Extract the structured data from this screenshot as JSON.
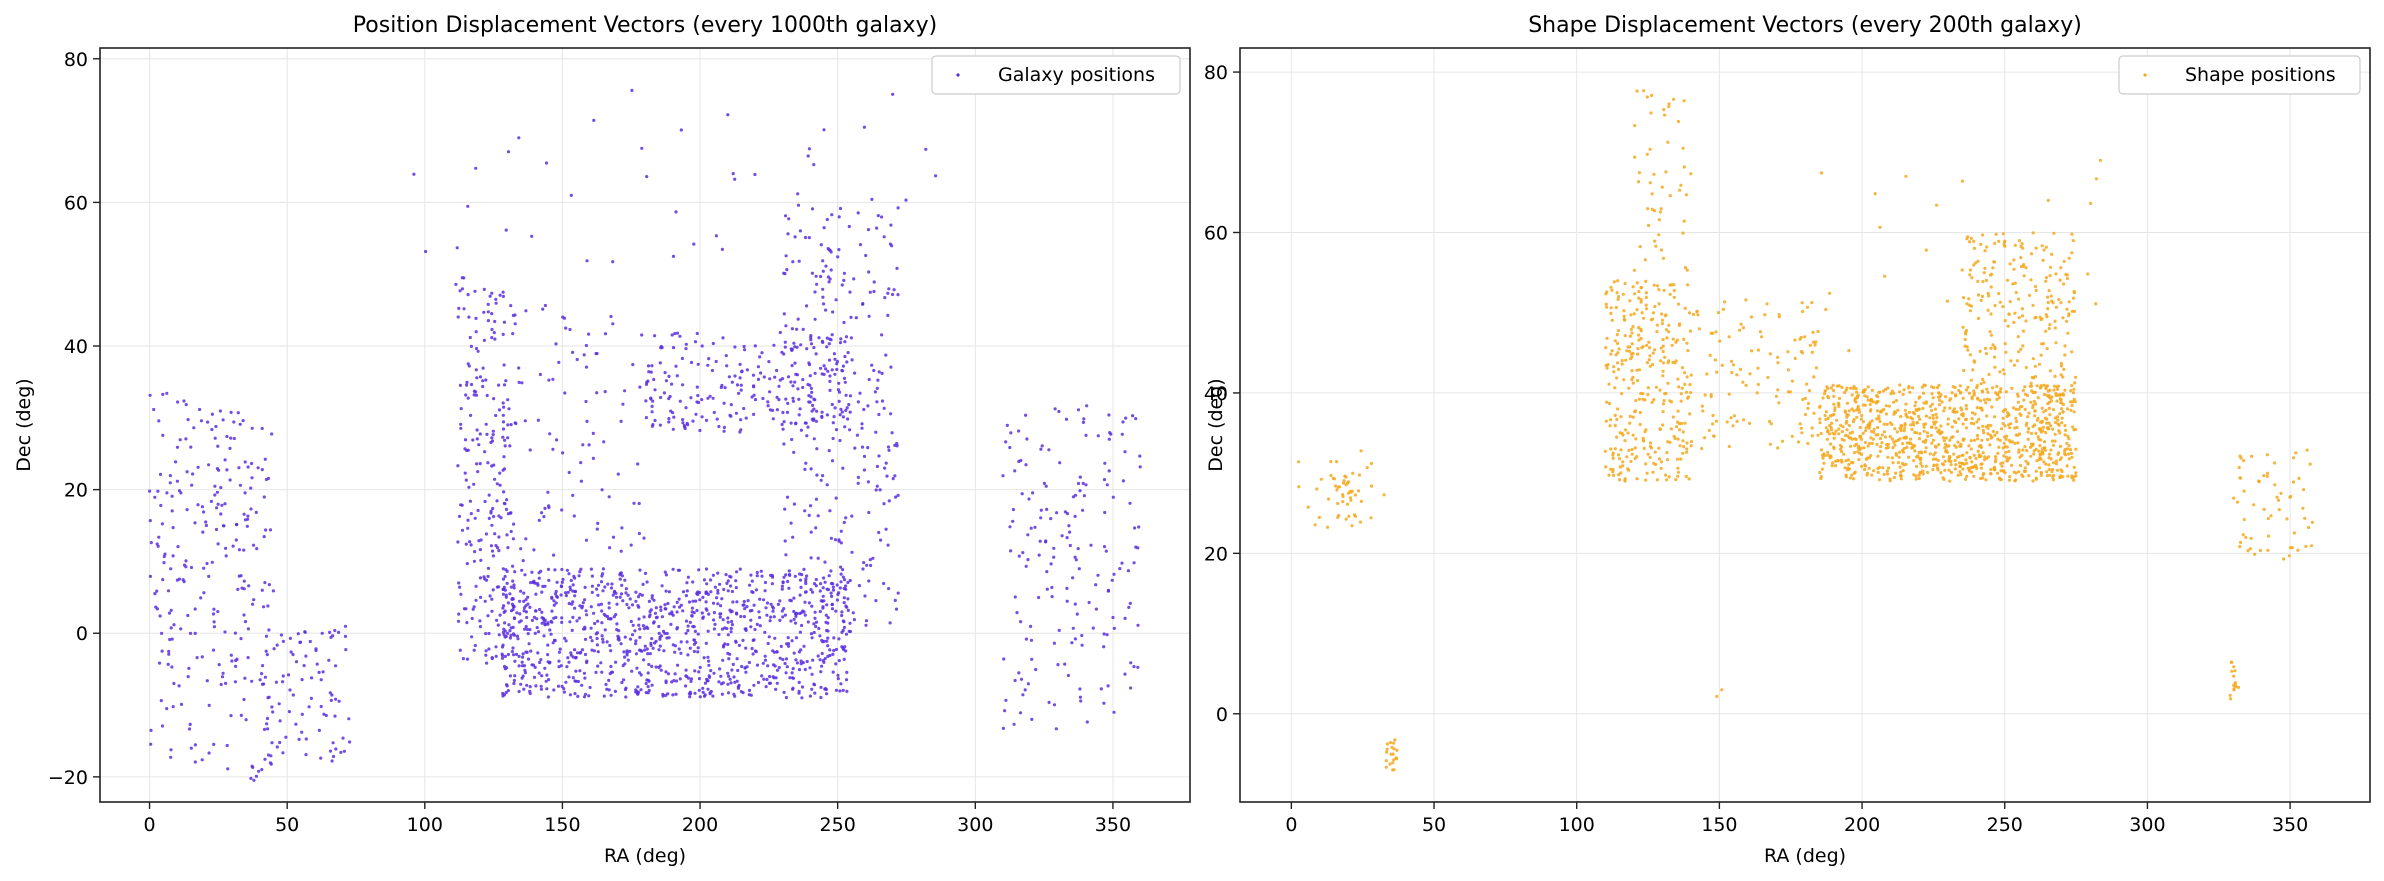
{
  "chart_data": [
    {
      "type": "scatter",
      "title": "Position Displacement Vectors (every 1000th galaxy)",
      "xlabel": "RA (deg)",
      "ylabel": "Dec (deg)",
      "xlim": [
        -18,
        378
      ],
      "ylim": [
        -23.5,
        81.5
      ],
      "xticks": [
        0,
        50,
        100,
        150,
        200,
        250,
        300,
        350
      ],
      "yticks": [
        -20,
        0,
        20,
        40,
        60,
        80
      ],
      "grid": true,
      "legend_position": "top-right",
      "series": [
        {
          "name": "Galaxy positions",
          "color": "#5b2fe0",
          "seed": 7,
          "clusters": [
            {
              "n": 260,
              "ra": [
                0,
                45
              ],
              "dec": [
                -19,
                32
              ],
              "slope": -0.35
            },
            {
              "n": 90,
              "ra": [
                40,
                73
              ],
              "dec": [
                -18,
                1
              ]
            },
            {
              "n": 180,
              "ra": [
                310,
                360
              ],
              "dec": [
                -13,
                32
              ],
              "slope": 0.25
            },
            {
              "n": 260,
              "ra": [
                112,
                135
              ],
              "dec": [
                -5,
                48
              ]
            },
            {
              "n": 1000,
              "ra": [
                128,
                255
              ],
              "dec": [
                -9,
                9
              ]
            },
            {
              "n": 240,
              "ra": [
                180,
                255
              ],
              "dec": [
                28,
                42
              ]
            },
            {
              "n": 300,
              "ra": [
                230,
                272
              ],
              "dec": [
                0,
                60
              ]
            },
            {
              "n": 80,
              "ra": [
                135,
                180
              ],
              "dec": [
                10,
                48
              ]
            },
            {
              "n": 45,
              "ra": [
                95,
                290
              ],
              "dec": [
                48,
                76
              ]
            }
          ]
        }
      ]
    },
    {
      "type": "scatter",
      "title": "Shape Displacement Vectors (every 200th galaxy)",
      "xlabel": "RA (deg)",
      "ylabel": "Dec (deg)",
      "xlim": [
        -18,
        378
      ],
      "ylim": [
        -11,
        83
      ],
      "xticks": [
        0,
        50,
        100,
        150,
        200,
        250,
        300,
        350
      ],
      "yticks": [
        0,
        20,
        40,
        60,
        80
      ],
      "grid": true,
      "legend_position": "top-right",
      "series": [
        {
          "name": "Shape positions",
          "color": "#f5a81c",
          "seed": 11,
          "clusters": [
            {
              "n": 30,
              "ra": [
                0,
                33
              ],
              "dec": [
                23,
                33
              ]
            },
            {
              "n": 25,
              "ra": [
                15,
                25
              ],
              "dec": [
                24,
                30
              ]
            },
            {
              "n": 20,
              "ra": [
                33,
                37
              ],
              "dec": [
                -7,
                -3
              ]
            },
            {
              "n": 2,
              "ra": [
                149,
                151
              ],
              "dec": [
                2,
                3
              ]
            },
            {
              "n": 15,
              "ra": [
                329,
                332
              ],
              "dec": [
                1.5,
                7.5
              ]
            },
            {
              "n": 60,
              "ra": [
                330,
                358
              ],
              "dec": [
                19,
                33
              ]
            },
            {
              "n": 320,
              "ra": [
                110,
                140
              ],
              "dec": [
                29,
                54
              ]
            },
            {
              "n": 50,
              "ra": [
                120,
                140
              ],
              "dec": [
                55,
                78
              ]
            },
            {
              "n": 120,
              "ra": [
                140,
                185
              ],
              "dec": [
                33,
                52
              ]
            },
            {
              "n": 1000,
              "ra": [
                185,
                275
              ],
              "dec": [
                29,
                41
              ]
            },
            {
              "n": 220,
              "ra": [
                235,
                275
              ],
              "dec": [
                40,
                60
              ]
            },
            {
              "n": 25,
              "ra": [
                180,
                285
              ],
              "dec": [
                45,
                69
              ]
            }
          ]
        }
      ]
    }
  ]
}
